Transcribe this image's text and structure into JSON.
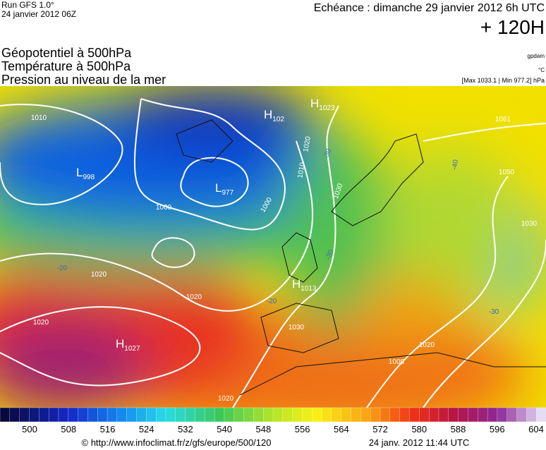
{
  "header": {
    "run": "Run GFS 1.0°",
    "run_date": "24 janvier 2012 06Z",
    "valid": "Echéance : dimanche 29 janvier 2012 6h UTC",
    "lead": "+ 120H"
  },
  "legend": {
    "lines": [
      "Géopotentiel à 500hPa",
      "Température à 500hPa",
      "Pression au niveau de la mer"
    ],
    "units": [
      "gpdam",
      "°C",
      "[Max 1033.1 | Min 977.2] hPa"
    ]
  },
  "map": {
    "centers": [
      {
        "type": "L",
        "value": "998"
      },
      {
        "type": "L",
        "value": "977"
      },
      {
        "type": "H",
        "value": "102"
      },
      {
        "type": "H",
        "value": "1023"
      },
      {
        "type": "H",
        "value": "1013"
      },
      {
        "type": "H",
        "value": "1027"
      }
    ],
    "isobar_labels": [
      "1010",
      "1000",
      "1020",
      "1020",
      "1020",
      "1020",
      "1010",
      "1000",
      "1030",
      "1030",
      "1030",
      "1061",
      "1050",
      "1020",
      "1008",
      "1020"
    ],
    "temperature_labels": [
      "-30",
      "-40",
      "-30",
      "-20",
      "-20",
      "-30"
    ]
  },
  "colorbar": {
    "labels": [
      500,
      508,
      516,
      524,
      532,
      540,
      548,
      556,
      564,
      572,
      580,
      588,
      596,
      604
    ]
  },
  "footer": {
    "source": "© http://www.infoclimat.fr/z/gfs/europe/500/120",
    "timestamp": "24 janv. 2012 11:44 UTC"
  }
}
